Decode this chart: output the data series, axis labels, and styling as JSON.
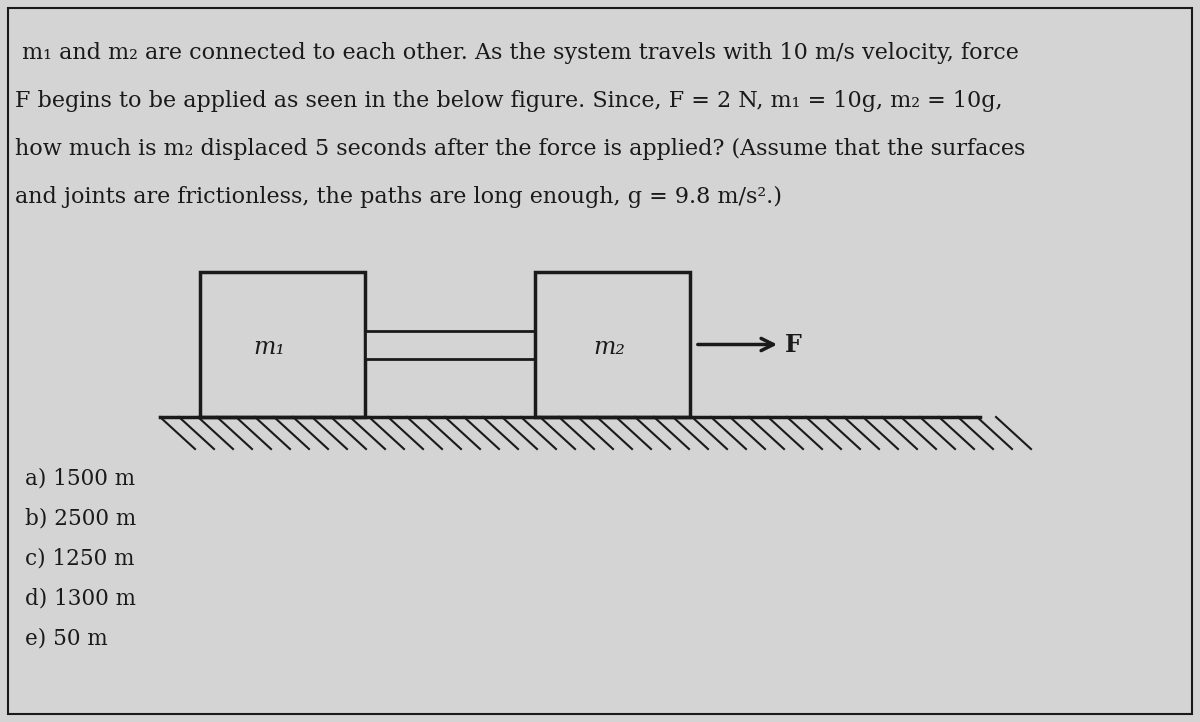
{
  "background_color": "#d4d4d4",
  "border_color": "#1a1a1a",
  "text_color": "#1a1a1a",
  "title_lines": [
    " m₁ and m₂ are connected to each other. As the system travels with 10 m/s velocity, force",
    "F begins to be applied as seen in the below figure. Since, F = 2 N, m₁ = 10g, m₂ = 10g,",
    "how much is m₂ displaced 5 seconds after the force is applied? (Assume that the surfaces",
    "and joints are frictionless, the paths are long enough, g = 9.8 m/s².)"
  ],
  "choices": [
    "a) 1500 m",
    "b) 2500 m",
    "c) 1250 m",
    "d) 1300 m",
    "e) 50 m"
  ],
  "box1_label": "m₁",
  "box2_label": "m₂",
  "title_fontsize": 16,
  "label_fontsize": 17,
  "choice_fontsize": 15.5,
  "force_fontsize": 17
}
